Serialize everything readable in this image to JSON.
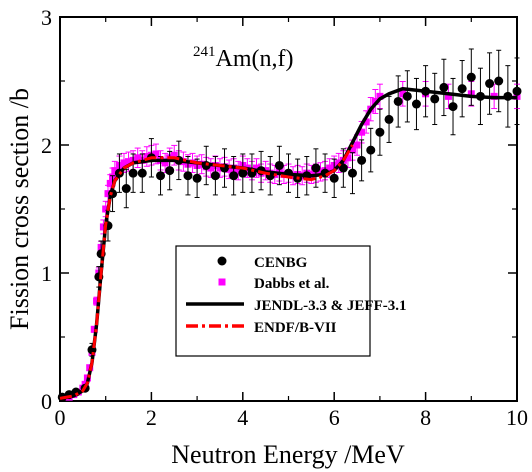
{
  "chart_data": {
    "type": "scatter",
    "xlabel": "Neutron Energy /MeV",
    "ylabel": "Fission cross section /b",
    "annotation": {
      "superscript": "241",
      "text": "Am(n,f)"
    },
    "xlim": [
      0,
      10
    ],
    "ylim": [
      0,
      3
    ],
    "xticks": [
      0,
      2,
      4,
      6,
      8,
      10
    ],
    "yticks": [
      0,
      1,
      2,
      3
    ],
    "legend_position": "center",
    "series": [
      {
        "name": "CENBG",
        "kind": "points-with-errorbars",
        "color": "#000000",
        "marker": "circle",
        "x": [
          0.05,
          0.2,
          0.35,
          0.55,
          0.7,
          0.85,
          0.9,
          1.05,
          1.15,
          1.3,
          1.45,
          1.6,
          1.8,
          2.0,
          2.2,
          2.4,
          2.6,
          2.8,
          3.0,
          3.2,
          3.4,
          3.6,
          3.8,
          4.0,
          4.2,
          4.4,
          4.6,
          4.8,
          5.0,
          5.2,
          5.4,
          5.6,
          5.8,
          6.0,
          6.2,
          6.4,
          6.6,
          6.8,
          7.0,
          7.2,
          7.4,
          7.6,
          7.8,
          8.0,
          8.2,
          8.4,
          8.6,
          8.8,
          9.0,
          9.2,
          9.4,
          9.6,
          9.8,
          10.0
        ],
        "y": [
          0.03,
          0.05,
          0.07,
          0.1,
          0.4,
          0.97,
          1.15,
          1.37,
          1.62,
          1.78,
          1.66,
          1.78,
          1.78,
          1.9,
          1.76,
          1.8,
          1.88,
          1.76,
          1.74,
          1.84,
          1.76,
          1.82,
          1.76,
          1.78,
          1.78,
          1.8,
          1.76,
          1.84,
          1.78,
          1.74,
          1.76,
          1.82,
          1.78,
          1.74,
          1.82,
          1.78,
          1.88,
          1.96,
          2.1,
          2.2,
          2.34,
          2.38,
          2.32,
          2.42,
          2.36,
          2.45,
          2.3,
          2.44,
          2.53,
          2.38,
          2.48,
          2.5,
          2.38,
          2.42
        ],
        "yerr": [
          0.01,
          0.01,
          0.01,
          0.02,
          0.05,
          0.08,
          0.1,
          0.12,
          0.14,
          0.15,
          0.15,
          0.15,
          0.15,
          0.15,
          0.15,
          0.15,
          0.15,
          0.15,
          0.15,
          0.15,
          0.15,
          0.15,
          0.15,
          0.15,
          0.15,
          0.15,
          0.15,
          0.15,
          0.15,
          0.15,
          0.15,
          0.15,
          0.15,
          0.15,
          0.15,
          0.16,
          0.16,
          0.17,
          0.18,
          0.18,
          0.2,
          0.2,
          0.2,
          0.2,
          0.2,
          0.22,
          0.22,
          0.22,
          0.22,
          0.22,
          0.24,
          0.24,
          0.24,
          0.26
        ]
      },
      {
        "name": "Dabbs et al.",
        "kind": "points-with-errorbars",
        "color": "#ff00ff",
        "marker": "square",
        "x": [
          0.2,
          0.3,
          0.4,
          0.5,
          0.55,
          0.6,
          0.65,
          0.7,
          0.75,
          0.8,
          0.85,
          0.9,
          0.95,
          1.0,
          1.05,
          1.1,
          1.15,
          1.2,
          1.3,
          1.4,
          1.5,
          1.6,
          1.7,
          1.8,
          1.9,
          2.0,
          2.1,
          2.2,
          2.3,
          2.4,
          2.5,
          2.6,
          2.7,
          2.8,
          2.9,
          3.0,
          3.1,
          3.2,
          3.3,
          3.4,
          3.5,
          3.6,
          3.7,
          3.8,
          3.9,
          4.0,
          4.1,
          4.2,
          4.3,
          4.4,
          4.5,
          4.6,
          4.7,
          4.8,
          4.9,
          5.0,
          5.1,
          5.2,
          5.3,
          5.4,
          5.5,
          5.6,
          5.7,
          5.8,
          5.9,
          6.0,
          6.1,
          6.2,
          6.3,
          6.4,
          6.5,
          6.6,
          6.7,
          6.8,
          6.9,
          7.0,
          7.5,
          8.0,
          8.5,
          9.0,
          9.5,
          10.0
        ],
        "y": [
          0.03,
          0.05,
          0.07,
          0.1,
          0.13,
          0.18,
          0.26,
          0.38,
          0.56,
          0.78,
          1.0,
          1.2,
          1.36,
          1.5,
          1.62,
          1.7,
          1.75,
          1.8,
          1.84,
          1.86,
          1.87,
          1.88,
          1.9,
          1.88,
          1.91,
          1.92,
          1.93,
          1.88,
          1.86,
          1.9,
          1.92,
          1.88,
          1.87,
          1.85,
          1.86,
          1.84,
          1.85,
          1.83,
          1.82,
          1.84,
          1.82,
          1.83,
          1.81,
          1.82,
          1.8,
          1.84,
          1.82,
          1.8,
          1.82,
          1.78,
          1.8,
          1.78,
          1.77,
          1.79,
          1.77,
          1.78,
          1.76,
          1.77,
          1.76,
          1.78,
          1.77,
          1.78,
          1.79,
          1.8,
          1.82,
          1.84,
          1.86,
          1.88,
          1.9,
          1.96,
          2.0,
          2.1,
          2.18,
          2.28,
          2.34,
          2.38,
          2.4,
          2.4,
          2.38,
          2.4,
          2.38,
          2.38
        ],
        "yerr_relative": 0.04
      },
      {
        "name": "JENDL-3.3 & JEFF-3.1",
        "kind": "line",
        "color": "#000000",
        "style": "solid",
        "x": [
          0,
          0.3,
          0.5,
          0.6,
          0.7,
          0.8,
          0.9,
          1.0,
          1.1,
          1.2,
          1.4,
          1.6,
          2.0,
          2.5,
          3.0,
          3.5,
          4.0,
          4.5,
          5.0,
          5.5,
          5.8,
          6.0,
          6.2,
          6.4,
          6.6,
          6.8,
          7.0,
          7.2,
          7.5,
          8.0,
          8.5,
          9.0,
          9.5,
          10.0
        ],
        "y": [
          0.02,
          0.04,
          0.08,
          0.14,
          0.3,
          0.6,
          1.0,
          1.38,
          1.6,
          1.72,
          1.82,
          1.86,
          1.88,
          1.88,
          1.86,
          1.84,
          1.82,
          1.79,
          1.77,
          1.76,
          1.77,
          1.8,
          1.88,
          2.02,
          2.16,
          2.28,
          2.36,
          2.4,
          2.44,
          2.42,
          2.4,
          2.38,
          2.37,
          2.37
        ]
      },
      {
        "name": "ENDF/B-VII",
        "kind": "line",
        "color": "#ff0000",
        "style": "dash-dot",
        "x": [
          0,
          0.3,
          0.5,
          0.6,
          0.7,
          0.8,
          0.9,
          1.0,
          1.1,
          1.2,
          1.4,
          1.6,
          2.0,
          2.5,
          3.0,
          3.5,
          4.0,
          4.5,
          5.0,
          5.5,
          5.8,
          6.0,
          6.2,
          6.4
        ],
        "y": [
          0.02,
          0.04,
          0.08,
          0.14,
          0.3,
          0.6,
          1.0,
          1.38,
          1.6,
          1.72,
          1.82,
          1.86,
          1.9,
          1.9,
          1.86,
          1.84,
          1.82,
          1.78,
          1.75,
          1.73,
          1.76,
          1.8,
          1.88,
          2.0
        ]
      }
    ]
  }
}
